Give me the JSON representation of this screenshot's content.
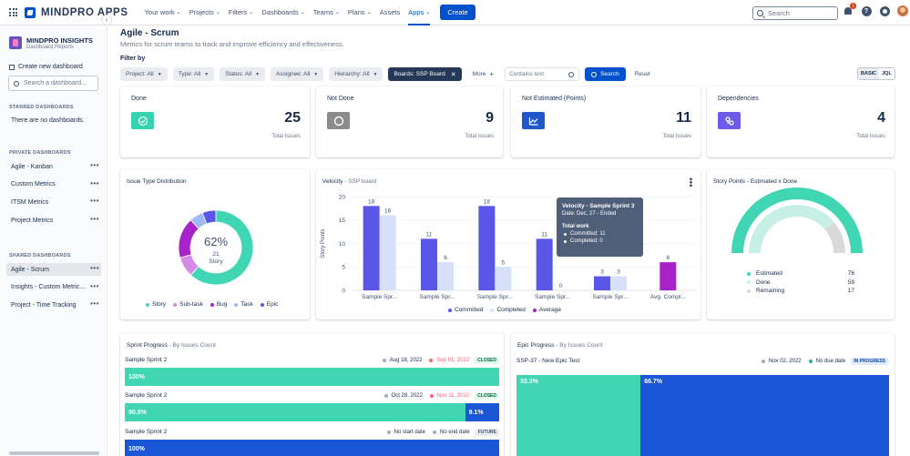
{
  "nav": {
    "logo": "MINDPRO APPS",
    "items": [
      {
        "label": "Your work",
        "chevron": true
      },
      {
        "label": "Projects",
        "chevron": true
      },
      {
        "label": "Filters",
        "chevron": true
      },
      {
        "label": "Dashboards",
        "chevron": true
      },
      {
        "label": "Teams",
        "chevron": true
      },
      {
        "label": "Plans",
        "chevron": true
      },
      {
        "label": "Assets",
        "chevron": false
      },
      {
        "label": "Apps",
        "chevron": true,
        "active": true
      }
    ],
    "create": "Create",
    "search_placeholder": "Search",
    "notif_count": "1",
    "help": "?"
  },
  "sidebar": {
    "title": "MINDPRO INSIGHTS",
    "subtitle": "Dashboard Reports",
    "create": "Create new dashboard",
    "search_placeholder": "Search a dashboard...",
    "starred_head": "STARRED DASHBOARDS",
    "starred_empty": "There are no dashboards.",
    "private_head": "PRIVATE DASHBOARDS",
    "private_items": [
      "Agile - Kanban",
      "Custom Metrics",
      "ITSM Metrics",
      "Project Metrics"
    ],
    "shared_head": "SHARED DASHBOARDS",
    "shared_items": [
      "Agile - Scrum",
      "Insights - Custom Metric...",
      "Project - Time Tracking"
    ]
  },
  "page": {
    "title": "Agile - Scrum",
    "description": "Metrics for scrum teams to track and improve efficiency and effectiveness."
  },
  "filters": {
    "label": "Filter by",
    "items": [
      "Project: All",
      "Type: All",
      "Status: All",
      "Assignee: All",
      "Hierarchy: All"
    ],
    "board": "Boards: SSP Board",
    "more": "More",
    "contains_placeholder": "Contains text",
    "search": "Search",
    "reset": "Reset",
    "mode_basic": "BASIC",
    "mode_jql": "JQL"
  },
  "stats": [
    {
      "title": "Done",
      "value": "25",
      "sub": "Total Issues",
      "color": "#36d3b2"
    },
    {
      "title": "Not Done",
      "value": "9",
      "sub": "Total Issues",
      "color": "#8b8b8b"
    },
    {
      "title": "Not Estimated (Points)",
      "value": "11",
      "sub": "Total Issues",
      "color": "#1f58c8"
    },
    {
      "title": "Dependencies",
      "value": "4",
      "sub": "Total Issues",
      "color": "#6c5ce7"
    }
  ],
  "issue_type": {
    "title": "Issue Type Distribution",
    "center_pct": "62%",
    "center_count": "21",
    "center_label": "Story",
    "legend": [
      {
        "name": "Story",
        "color": "#40d6b4"
      },
      {
        "name": "Sub-task",
        "color": "#d48be6"
      },
      {
        "name": "Bug",
        "color": "#a722c8"
      },
      {
        "name": "Task",
        "color": "#9db8f5"
      },
      {
        "name": "Epic",
        "color": "#5a57e8"
      }
    ]
  },
  "velocity": {
    "title": "Velocity",
    "subtitle": "- SSP board",
    "ylabel": "Story Points",
    "tooltip": {
      "title": "Velocity - Sample Sprint 3",
      "date": "Date: Dec, 27 - Ended",
      "total": "Total work",
      "committed": "Committed: 11",
      "completed": "Completed: 0"
    }
  },
  "story_points": {
    "title": "Story Points - Estimated x Done",
    "rows": [
      {
        "label": "Estimated",
        "value": "76",
        "color": "#40d6b4"
      },
      {
        "label": "Done",
        "value": "59",
        "color": "#c8efe6"
      },
      {
        "label": "Remaining",
        "value": "17",
        "color": "#d9d9d9"
      }
    ]
  },
  "sprint_progress": {
    "title": "Sprint Progress",
    "subtitle": "- By Issues Count",
    "rows": [
      {
        "name": "Sample Sprint 2",
        "start": "Aug 18, 2022",
        "end": "Sep 01, 2022",
        "end_color": "#ff5d7a",
        "status": "CLOSED",
        "segments": [
          {
            "label": "100%",
            "pct": 100,
            "color": "#40d6b4"
          }
        ]
      },
      {
        "name": "Sample Sprint 2",
        "start": "Oct 28, 2022",
        "end": "Nov 11, 2022",
        "end_color": "#ff5d7a",
        "status": "CLOSED",
        "segments": [
          {
            "label": "90.9%",
            "pct": 90.9,
            "color": "#40d6b4"
          },
          {
            "label": "9.1%",
            "pct": 9.1,
            "color": "#1a56d6"
          }
        ]
      },
      {
        "name": "Sample Sprint 2",
        "start": "No start date",
        "end": "No end date",
        "end_color": "#172b4d",
        "status": "FUTURE",
        "segments": [
          {
            "label": "100%",
            "pct": 100,
            "color": "#1a56d6"
          }
        ]
      }
    ]
  },
  "epic_progress": {
    "title": "Epic Progress",
    "subtitle": "- By Issues Count",
    "name": "SSP-37 - New Epic Test",
    "start": "Nov 02, 2022",
    "end": "No due date",
    "status": "IN PROGRESS",
    "segments": [
      {
        "label": "33.3%",
        "pct": 33.3,
        "color": "#40d6b4"
      },
      {
        "label": "66.7%",
        "pct": 66.7,
        "color": "#1a56d6"
      }
    ]
  },
  "chart_data": [
    {
      "type": "bar",
      "title": "Velocity",
      "subtitle": "- SSP board",
      "ylabel": "Story Points",
      "xlabel": "",
      "ylim": [
        0,
        20
      ],
      "yticks": [
        0,
        5,
        10,
        15,
        20
      ],
      "categories": [
        "Sample Spr...",
        "Sample Spr...",
        "Sample Spr...",
        "Sample Spr...",
        "Sample Spr...",
        "Avg. Compl..."
      ],
      "series": [
        {
          "name": "Committed",
          "color": "#5a57e8",
          "values": [
            18,
            11,
            18,
            11,
            3,
            null
          ]
        },
        {
          "name": "Completed",
          "color": "#d6e0fb",
          "values": [
            16,
            6,
            5,
            0,
            3,
            null
          ]
        },
        {
          "name": "Average",
          "color": "#a722c8",
          "values": [
            null,
            null,
            null,
            null,
            null,
            6
          ]
        }
      ],
      "legend": "bottom"
    },
    {
      "type": "pie",
      "title": "Issue Type Distribution",
      "categories": [
        "Story",
        "Sub-task",
        "Bug",
        "Task",
        "Epic"
      ],
      "values": [
        21,
        3,
        6,
        2,
        2
      ],
      "colors": [
        "#40d6b4",
        "#d48be6",
        "#a722c8",
        "#9db8f5",
        "#5a57e8"
      ],
      "legend": "bottom"
    },
    {
      "type": "pie",
      "title": "Story Points - Estimated x Done",
      "categories": [
        "Done",
        "Remaining"
      ],
      "values": [
        59,
        17
      ],
      "colors": [
        "#c8efe6",
        "#d9d9d9"
      ],
      "legend": "bottom"
    }
  ]
}
